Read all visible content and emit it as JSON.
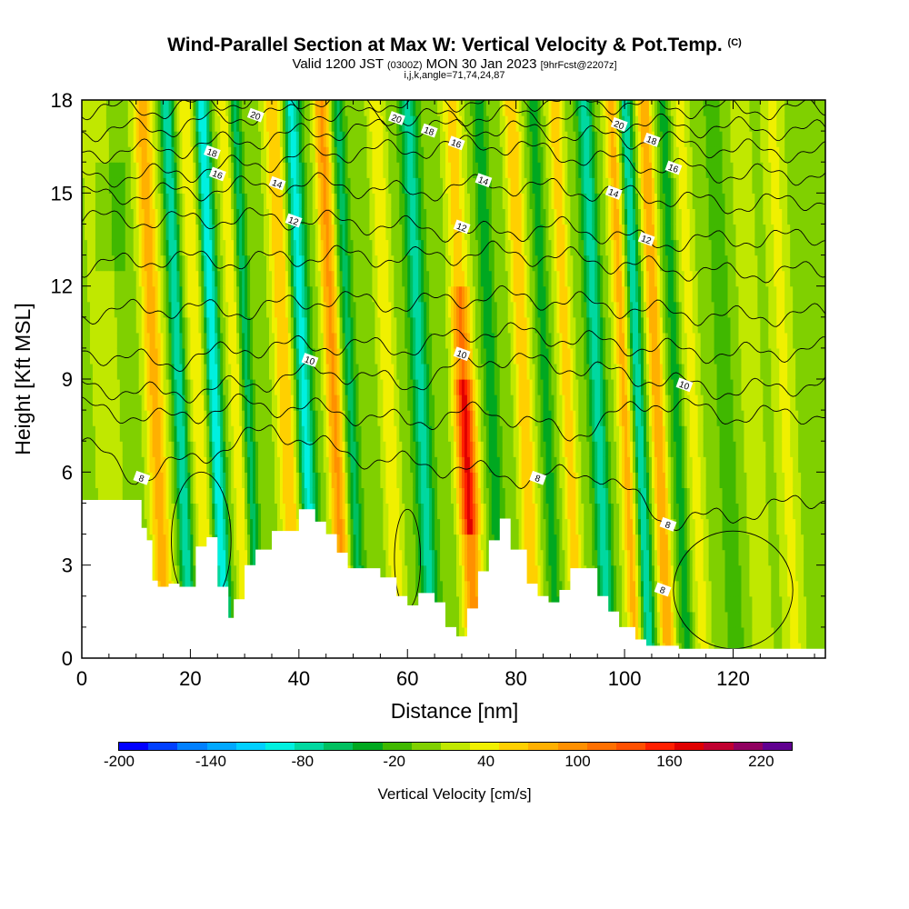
{
  "figure": {
    "title": "Wind-Parallel Section at Max W: Vertical Velocity & Pot.Temp.",
    "copyright": "(C)",
    "valid_prefix": "Valid 1200 JST",
    "valid_utc": "(0300Z)",
    "valid_date": "MON 30 Jan 2023",
    "forecast": "[9hrFcst@2207z]",
    "ijk": "i,j,k,angle=71,74,24,87"
  },
  "chart_data": {
    "type": "heatmap",
    "xlabel": "Distance [nm]",
    "ylabel": "Height [Kft MSL]",
    "xlim": [
      0,
      137
    ],
    "ylim": [
      0,
      18
    ],
    "x_ticks": [
      0,
      20,
      40,
      60,
      80,
      100,
      120
    ],
    "y_ticks": [
      0,
      3,
      6,
      9,
      12,
      15,
      18
    ],
    "field": "Vertical Velocity [cm/s]",
    "colorbar": {
      "label": "Vertical Velocity [cm/s]",
      "tick_labels": [
        "-200",
        "-140",
        "-80",
        "-20",
        "40",
        "100",
        "160",
        "220"
      ],
      "tick_values": [
        -200,
        -140,
        -80,
        -20,
        40,
        100,
        160,
        220
      ],
      "range": [
        -200,
        240
      ],
      "step": 20,
      "colors": [
        "#0000ff",
        "#0040ff",
        "#0080ff",
        "#00a8ff",
        "#00d0ff",
        "#00f0e0",
        "#00d8a0",
        "#00c060",
        "#00a820",
        "#40b800",
        "#80d000",
        "#c0e800",
        "#f0f000",
        "#ffd000",
        "#ffb000",
        "#ff9000",
        "#ff7000",
        "#ff5000",
        "#ff2000",
        "#e00000",
        "#c00030",
        "#900060",
        "#600090"
      ]
    },
    "terrain_height_kft": [
      {
        "x": 0,
        "h": 5.1
      },
      {
        "x": 8,
        "h": 5.1
      },
      {
        "x": 11,
        "h": 4.2
      },
      {
        "x": 12,
        "h": 3.8
      },
      {
        "x": 13,
        "h": 2.5
      },
      {
        "x": 14,
        "h": 2.3
      },
      {
        "x": 16,
        "h": 2.4
      },
      {
        "x": 18,
        "h": 2.3
      },
      {
        "x": 21,
        "h": 3.6
      },
      {
        "x": 23,
        "h": 3.9
      },
      {
        "x": 25,
        "h": 2.3
      },
      {
        "x": 27,
        "h": 1.3
      },
      {
        "x": 28,
        "h": 1.9
      },
      {
        "x": 30,
        "h": 3.0
      },
      {
        "x": 32,
        "h": 3.5
      },
      {
        "x": 35,
        "h": 4.1
      },
      {
        "x": 40,
        "h": 4.8
      },
      {
        "x": 43,
        "h": 4.4
      },
      {
        "x": 45,
        "h": 4.0
      },
      {
        "x": 47,
        "h": 3.4
      },
      {
        "x": 49,
        "h": 2.9
      },
      {
        "x": 53,
        "h": 2.9
      },
      {
        "x": 55,
        "h": 2.6
      },
      {
        "x": 58,
        "h": 2.0
      },
      {
        "x": 60,
        "h": 1.7
      },
      {
        "x": 62,
        "h": 2.1
      },
      {
        "x": 65,
        "h": 1.8
      },
      {
        "x": 67,
        "h": 1.0
      },
      {
        "x": 69,
        "h": 0.7
      },
      {
        "x": 71,
        "h": 1.6
      },
      {
        "x": 73,
        "h": 2.8
      },
      {
        "x": 75,
        "h": 3.8
      },
      {
        "x": 77,
        "h": 4.5
      },
      {
        "x": 79,
        "h": 3.5
      },
      {
        "x": 82,
        "h": 2.4
      },
      {
        "x": 84,
        "h": 2.0
      },
      {
        "x": 86,
        "h": 1.8
      },
      {
        "x": 88,
        "h": 2.2
      },
      {
        "x": 90,
        "h": 2.9
      },
      {
        "x": 93,
        "h": 2.9
      },
      {
        "x": 95,
        "h": 2.0
      },
      {
        "x": 97,
        "h": 1.5
      },
      {
        "x": 99,
        "h": 1.0
      },
      {
        "x": 102,
        "h": 0.6
      },
      {
        "x": 104,
        "h": 0.4
      },
      {
        "x": 107,
        "h": 0.4
      },
      {
        "x": 110,
        "h": 0.3
      },
      {
        "x": 137,
        "h": 0.3
      }
    ],
    "updraft_bands": [
      {
        "x": 14,
        "w": 83,
        "width": 1.8
      },
      {
        "x": 18.5,
        "w": -90,
        "width": 1.2
      },
      {
        "x": 22,
        "w": 50,
        "width": 1.6
      },
      {
        "x": 25,
        "w": -110,
        "width": 1.3
      },
      {
        "x": 29,
        "w": 45,
        "width": 1.4
      },
      {
        "x": 31,
        "w": -60,
        "width": 1.1
      },
      {
        "x": 38,
        "w": 70,
        "width": 1.8
      },
      {
        "x": 41.5,
        "w": -100,
        "width": 1.5
      },
      {
        "x": 47,
        "w": 95,
        "width": 1.6
      },
      {
        "x": 50,
        "w": -60,
        "width": 1.2
      },
      {
        "x": 57,
        "w": 45,
        "width": 1.6
      },
      {
        "x": 63,
        "w": -80,
        "width": 1.6
      },
      {
        "x": 71,
        "w": 175,
        "width": 1.8
      },
      {
        "x": 76,
        "w": -50,
        "width": 1.2
      },
      {
        "x": 82,
        "w": 70,
        "width": 1.6
      },
      {
        "x": 86,
        "w": -40,
        "width": 1.2
      },
      {
        "x": 90,
        "w": 60,
        "width": 1.5
      },
      {
        "x": 95.5,
        "w": -85,
        "width": 1.4
      },
      {
        "x": 100.5,
        "w": 75,
        "width": 1.5
      },
      {
        "x": 103,
        "w": -90,
        "width": 1.2
      },
      {
        "x": 106.5,
        "w": 90,
        "width": 1.4
      },
      {
        "x": 110,
        "w": -40,
        "width": 1.2
      },
      {
        "x": 113,
        "w": 40,
        "width": 1.5
      },
      {
        "x": 119,
        "w": -20,
        "width": 1.8
      },
      {
        "x": 124,
        "w": 30,
        "width": 1.8
      },
      {
        "x": 130,
        "w": 35,
        "width": 2.0
      },
      {
        "x": 5,
        "w": 20,
        "width": 3.0
      }
    ],
    "theta_contours": [
      {
        "label": "8",
        "label_points": [
          {
            "x": 11,
            "y": 5.8
          },
          {
            "x": 84,
            "y": 5.8
          },
          {
            "x": 108,
            "y": 4.3
          },
          {
            "x": 107,
            "y": 2.2
          }
        ],
        "y": [
          {
            "x": 0,
            "y": 7.0
          },
          {
            "x": 10,
            "y": 5.8
          },
          {
            "x": 20,
            "y": 6.4
          },
          {
            "x": 35,
            "y": 7.4
          },
          {
            "x": 50,
            "y": 6.5
          },
          {
            "x": 70,
            "y": 6.1
          },
          {
            "x": 82,
            "y": 5.8
          },
          {
            "x": 95,
            "y": 6.0
          },
          {
            "x": 108,
            "y": 4.4
          },
          {
            "x": 120,
            "y": 4.6
          },
          {
            "x": 137,
            "y": 5.2
          }
        ]
      },
      {
        "label": "",
        "label_points": [],
        "y": [
          {
            "x": 0,
            "y": 8.1
          },
          {
            "x": 15,
            "y": 7.7
          },
          {
            "x": 30,
            "y": 8.2
          },
          {
            "x": 45,
            "y": 8.0
          },
          {
            "x": 60,
            "y": 7.6
          },
          {
            "x": 75,
            "y": 8.0
          },
          {
            "x": 90,
            "y": 7.2
          },
          {
            "x": 105,
            "y": 8.3
          },
          {
            "x": 120,
            "y": 7.8
          },
          {
            "x": 137,
            "y": 7.9
          }
        ]
      },
      {
        "label": "10",
        "label_points": [
          {
            "x": 42,
            "y": 9.6
          },
          {
            "x": 70,
            "y": 9.8
          },
          {
            "x": 111,
            "y": 8.8
          }
        ],
        "y": [
          {
            "x": 0,
            "y": 8.8
          },
          {
            "x": 15,
            "y": 8.5
          },
          {
            "x": 30,
            "y": 8.8
          },
          {
            "x": 45,
            "y": 9.3
          },
          {
            "x": 60,
            "y": 8.8
          },
          {
            "x": 75,
            "y": 9.7
          },
          {
            "x": 90,
            "y": 9.4
          },
          {
            "x": 105,
            "y": 9.0
          },
          {
            "x": 120,
            "y": 8.6
          },
          {
            "x": 137,
            "y": 8.9
          }
        ]
      },
      {
        "label": "",
        "label_points": [],
        "y": [
          {
            "x": 0,
            "y": 9.9
          },
          {
            "x": 15,
            "y": 9.5
          },
          {
            "x": 30,
            "y": 10.0
          },
          {
            "x": 45,
            "y": 10.1
          },
          {
            "x": 60,
            "y": 10.0
          },
          {
            "x": 75,
            "y": 10.6
          },
          {
            "x": 90,
            "y": 10.3
          },
          {
            "x": 105,
            "y": 10.0
          },
          {
            "x": 120,
            "y": 9.8
          },
          {
            "x": 137,
            "y": 10.0
          }
        ]
      },
      {
        "label": "",
        "label_points": [],
        "y": [
          {
            "x": 0,
            "y": 11.1
          },
          {
            "x": 15,
            "y": 11.3
          },
          {
            "x": 30,
            "y": 11.2
          },
          {
            "x": 45,
            "y": 11.6
          },
          {
            "x": 60,
            "y": 11.4
          },
          {
            "x": 75,
            "y": 11.7
          },
          {
            "x": 90,
            "y": 11.5
          },
          {
            "x": 105,
            "y": 11.2
          },
          {
            "x": 120,
            "y": 11.0
          },
          {
            "x": 137,
            "y": 11.1
          }
        ]
      },
      {
        "label": "",
        "label_points": [],
        "y": [
          {
            "x": 0,
            "y": 12.6
          },
          {
            "x": 15,
            "y": 12.9
          },
          {
            "x": 30,
            "y": 12.8
          },
          {
            "x": 45,
            "y": 13.0
          },
          {
            "x": 60,
            "y": 12.9
          },
          {
            "x": 75,
            "y": 13.1
          },
          {
            "x": 90,
            "y": 12.9
          },
          {
            "x": 105,
            "y": 12.6
          },
          {
            "x": 120,
            "y": 12.4
          },
          {
            "x": 137,
            "y": 12.5
          }
        ]
      },
      {
        "label": "12",
        "label_points": [
          {
            "x": 39,
            "y": 14.1
          },
          {
            "x": 70,
            "y": 13.9
          },
          {
            "x": 104,
            "y": 13.5
          }
        ],
        "y": [
          {
            "x": 0,
            "y": 14.2
          },
          {
            "x": 15,
            "y": 14.1
          },
          {
            "x": 30,
            "y": 14.2
          },
          {
            "x": 45,
            "y": 14.1
          },
          {
            "x": 60,
            "y": 13.9
          },
          {
            "x": 72,
            "y": 13.7
          },
          {
            "x": 90,
            "y": 13.9
          },
          {
            "x": 105,
            "y": 13.4
          },
          {
            "x": 120,
            "y": 13.5
          },
          {
            "x": 137,
            "y": 13.6
          }
        ]
      },
      {
        "label": "14",
        "label_points": [
          {
            "x": 36,
            "y": 15.3
          },
          {
            "x": 74,
            "y": 15.4
          },
          {
            "x": 98,
            "y": 15.0
          }
        ],
        "y": [
          {
            "x": 0,
            "y": 14.9
          },
          {
            "x": 15,
            "y": 15.0
          },
          {
            "x": 30,
            "y": 15.2
          },
          {
            "x": 45,
            "y": 15.3
          },
          {
            "x": 60,
            "y": 15.0
          },
          {
            "x": 75,
            "y": 15.3
          },
          {
            "x": 90,
            "y": 15.1
          },
          {
            "x": 105,
            "y": 14.9
          },
          {
            "x": 120,
            "y": 14.6
          },
          {
            "x": 137,
            "y": 14.8
          }
        ]
      },
      {
        "label": "16",
        "label_points": [
          {
            "x": 25,
            "y": 15.6
          },
          {
            "x": 69,
            "y": 16.6
          },
          {
            "x": 109,
            "y": 15.8
          }
        ],
        "y": [
          {
            "x": 0,
            "y": 15.5
          },
          {
            "x": 15,
            "y": 15.6
          },
          {
            "x": 30,
            "y": 15.9
          },
          {
            "x": 45,
            "y": 16.3
          },
          {
            "x": 60,
            "y": 16.4
          },
          {
            "x": 75,
            "y": 16.6
          },
          {
            "x": 90,
            "y": 16.2
          },
          {
            "x": 105,
            "y": 15.9
          },
          {
            "x": 120,
            "y": 15.6
          },
          {
            "x": 137,
            "y": 15.6
          }
        ]
      },
      {
        "label": "18",
        "label_points": [
          {
            "x": 24,
            "y": 16.3
          },
          {
            "x": 64,
            "y": 17.0
          },
          {
            "x": 105,
            "y": 16.7
          }
        ],
        "y": [
          {
            "x": 0,
            "y": 16.3
          },
          {
            "x": 15,
            "y": 16.4
          },
          {
            "x": 30,
            "y": 16.7
          },
          {
            "x": 45,
            "y": 17.0
          },
          {
            "x": 60,
            "y": 17.1
          },
          {
            "x": 75,
            "y": 17.1
          },
          {
            "x": 90,
            "y": 16.9
          },
          {
            "x": 105,
            "y": 16.7
          },
          {
            "x": 120,
            "y": 16.4
          },
          {
            "x": 137,
            "y": 16.3
          }
        ]
      },
      {
        "label": "20",
        "label_points": [
          {
            "x": 32,
            "y": 17.5
          },
          {
            "x": 58,
            "y": 17.4
          },
          {
            "x": 99,
            "y": 17.2
          }
        ],
        "y": [
          {
            "x": 0,
            "y": 17.0
          },
          {
            "x": 15,
            "y": 17.1
          },
          {
            "x": 30,
            "y": 17.5
          },
          {
            "x": 45,
            "y": 17.6
          },
          {
            "x": 60,
            "y": 17.4
          },
          {
            "x": 75,
            "y": 17.5
          },
          {
            "x": 90,
            "y": 17.5
          },
          {
            "x": 105,
            "y": 17.2
          },
          {
            "x": 120,
            "y": 17.1
          },
          {
            "x": 137,
            "y": 17.0
          }
        ]
      },
      {
        "label": "",
        "label_points": [],
        "y": [
          {
            "x": 0,
            "y": 17.7
          },
          {
            "x": 15,
            "y": 17.7
          },
          {
            "x": 30,
            "y": 18.0
          },
          {
            "x": 45,
            "y": 18.0
          },
          {
            "x": 60,
            "y": 17.9
          },
          {
            "x": 75,
            "y": 18.0
          },
          {
            "x": 90,
            "y": 18.0
          },
          {
            "x": 105,
            "y": 17.8
          },
          {
            "x": 120,
            "y": 17.7
          },
          {
            "x": 137,
            "y": 17.7
          }
        ]
      }
    ],
    "terrain_theta8_loops": [
      {
        "cx": 22,
        "cy": 3.8,
        "rx": 5.5,
        "ry": 2.2
      },
      {
        "cx": 60,
        "cy": 3.2,
        "rx": 2.4,
        "ry": 1.6
      },
      {
        "cx": 120,
        "cy": 2.2,
        "rx": 11,
        "ry": 1.9
      }
    ],
    "grid": false,
    "legend": "bottom"
  }
}
